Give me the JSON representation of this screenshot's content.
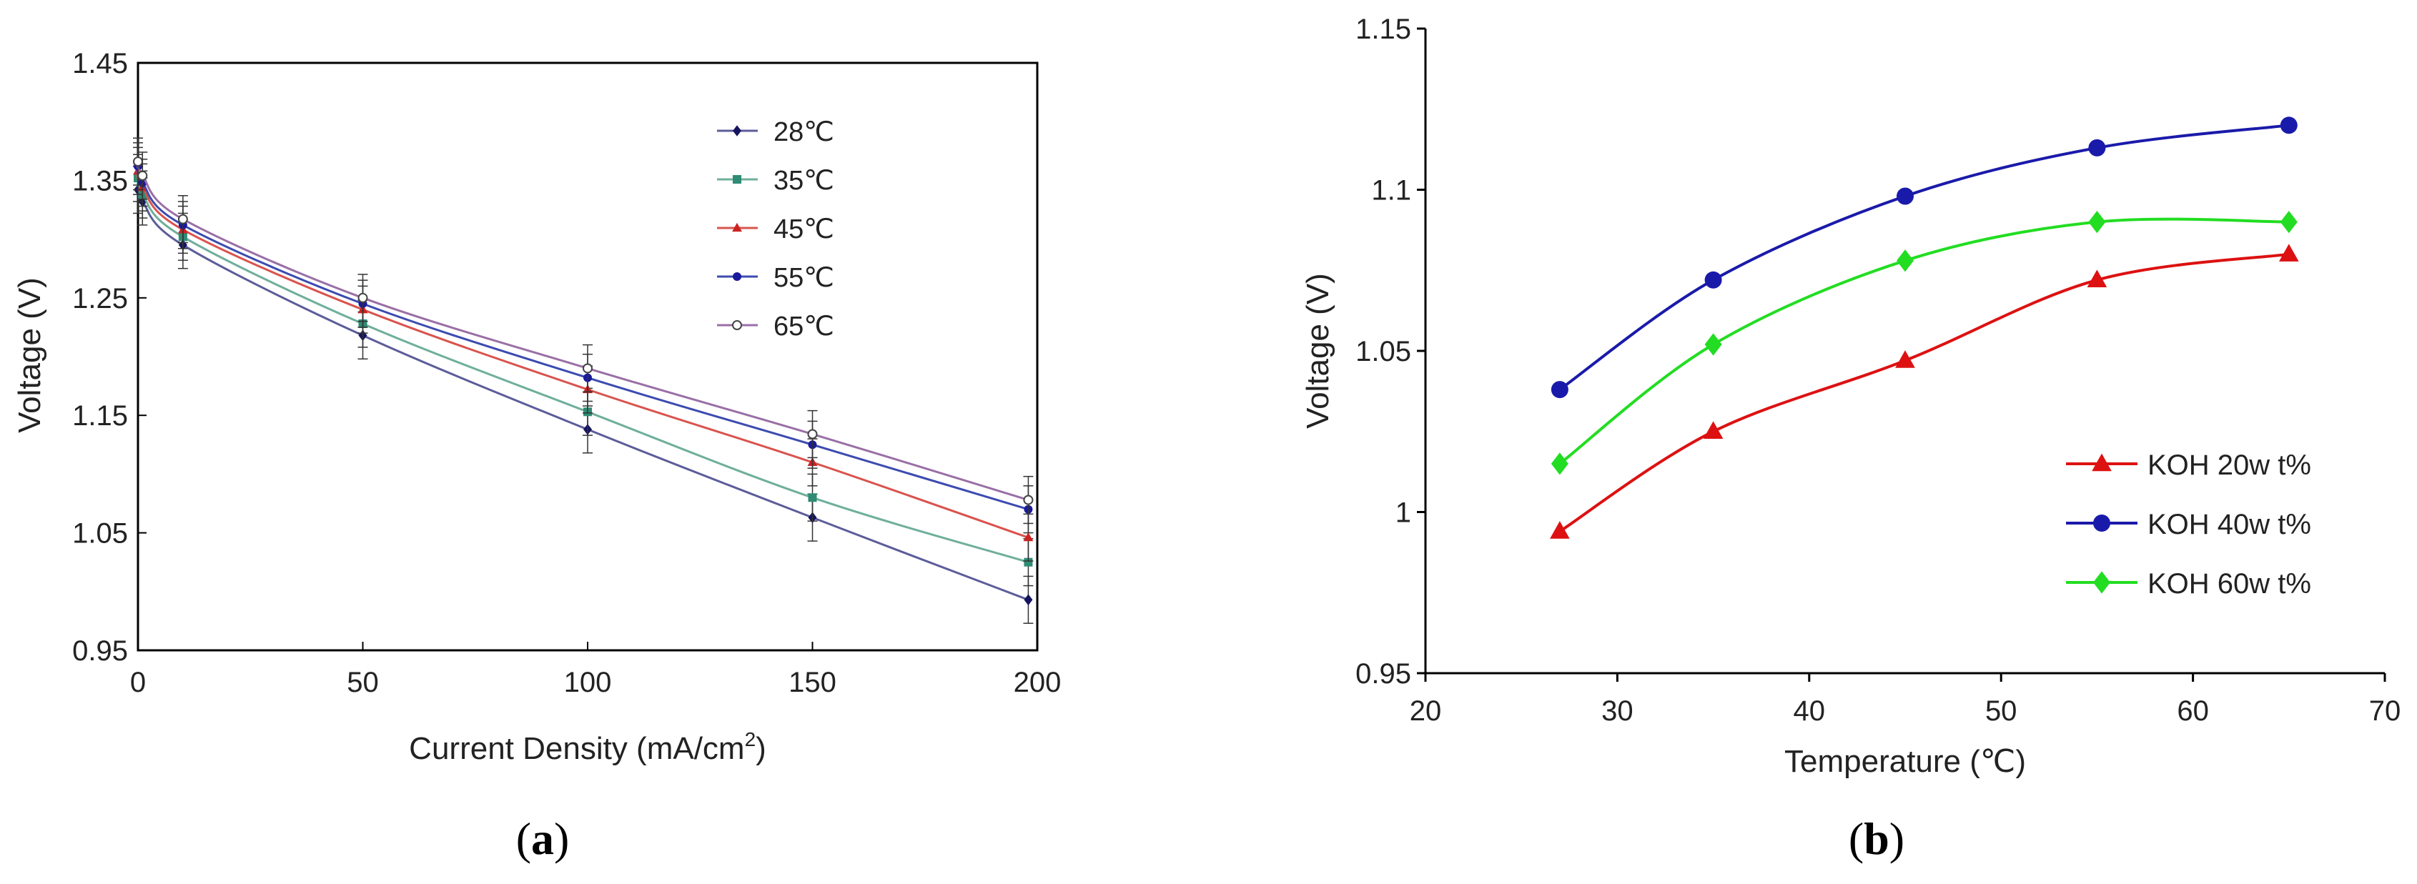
{
  "chart_data": [
    {
      "type": "line",
      "panel_label": "a",
      "xlabel": "Current Density (mA/cm",
      "xlabel_sup": "2",
      "xlabel_tail": ")",
      "ylabel": "Voltage (V)",
      "xlim": [
        0,
        200
      ],
      "ylim": [
        0.95,
        1.45
      ],
      "xticks": [
        "0",
        "50",
        "100",
        "150",
        "200"
      ],
      "yticks": [
        "0.95",
        "1.05",
        "1.15",
        "1.25",
        "1.35",
        "1.45"
      ],
      "x": [
        0,
        1,
        10,
        50,
        100,
        150,
        198
      ],
      "error_bar": 0.02,
      "legend_position": "top-right",
      "series": [
        {
          "name": "28℃",
          "color": "#5c5c9a",
          "marker": "diamond",
          "marker_color": "#15155f",
          "values": [
            1.342,
            1.332,
            1.295,
            1.218,
            1.138,
            1.063,
            0.993
          ]
        },
        {
          "name": "35℃",
          "color": "#6faf9c",
          "marker": "square",
          "marker_color": "#2e8c74",
          "values": [
            1.352,
            1.338,
            1.302,
            1.228,
            1.153,
            1.08,
            1.025
          ]
        },
        {
          "name": "45℃",
          "color": "#d9534d",
          "marker": "triangle",
          "marker_color": "#cc2222",
          "values": [
            1.358,
            1.344,
            1.308,
            1.24,
            1.172,
            1.11,
            1.046
          ]
        },
        {
          "name": "55℃",
          "color": "#3c4bb0",
          "marker": "circle",
          "marker_color": "#1a1a9c",
          "values": [
            1.362,
            1.348,
            1.312,
            1.245,
            1.182,
            1.125,
            1.07
          ]
        },
        {
          "name": "65℃",
          "color": "#9a6fa6",
          "marker": "open-circle",
          "marker_color": "#444444",
          "values": [
            1.366,
            1.354,
            1.317,
            1.25,
            1.19,
            1.134,
            1.078
          ]
        }
      ]
    },
    {
      "type": "line",
      "panel_label": "b",
      "xlabel": "Temperature (℃)",
      "ylabel": "Voltage (V)",
      "xlim": [
        20,
        70
      ],
      "ylim": [
        0.95,
        1.15
      ],
      "xticks": [
        "20",
        "30",
        "40",
        "50",
        "60",
        "70"
      ],
      "yticks": [
        "0.95",
        "1",
        "1.05",
        "1.1",
        "1.15"
      ],
      "x": [
        27,
        35,
        45,
        55,
        65
      ],
      "legend_position": "bottom-right",
      "series": [
        {
          "name": "KOH 20w t%",
          "color": "#dd1111",
          "marker": "triangle",
          "values": [
            0.994,
            1.025,
            1.047,
            1.072,
            1.08
          ]
        },
        {
          "name": "KOH 40w t%",
          "color": "#1a1aaa",
          "marker": "circle",
          "values": [
            1.038,
            1.072,
            1.098,
            1.113,
            1.12
          ]
        },
        {
          "name": "KOH 60w t%",
          "color": "#22dd22",
          "marker": "diamond",
          "values": [
            1.015,
            1.052,
            1.078,
            1.09,
            1.09
          ]
        }
      ]
    }
  ]
}
